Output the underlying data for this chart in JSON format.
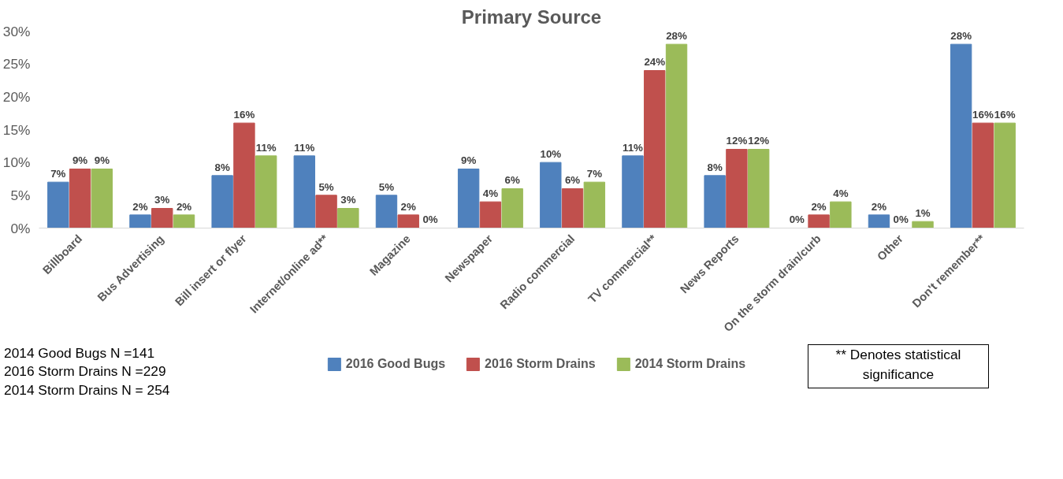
{
  "chart_data": {
    "type": "bar",
    "title": "Primary Source",
    "categories": [
      "Billboard",
      "Bus Advertising",
      "Bill insert or flyer",
      "Internet/online ad**",
      "Magazine",
      "Newspaper",
      "Radio commercial",
      "TV commercial**",
      "News Reports",
      "On the storm drain/curb",
      "Other",
      "Don't remember**"
    ],
    "series": [
      {
        "name": "2016 Good Bugs",
        "color": "#4f81bd",
        "values": [
          7,
          2,
          8,
          11,
          5,
          9,
          10,
          11,
          8,
          0,
          2,
          28
        ],
        "value_labels": [
          "7%",
          "2%",
          "8%",
          "11%",
          "5%",
          "9%",
          "10%",
          "11%",
          "8%",
          "0%",
          "2%",
          "28%"
        ]
      },
      {
        "name": "2016 Storm Drains",
        "color": "#c0504d",
        "values": [
          9,
          3,
          16,
          5,
          2,
          4,
          6,
          24,
          12,
          2,
          0,
          16
        ],
        "value_labels": [
          "9%",
          "3%",
          "16%",
          "5%",
          "2%",
          "4%",
          "6%",
          "24%",
          "12%",
          "2%",
          "0%",
          "16%"
        ]
      },
      {
        "name": "2014 Storm Drains",
        "color": "#9bbb59",
        "values": [
          9,
          2,
          11,
          3,
          0,
          6,
          7,
          28,
          12,
          4,
          1,
          16
        ],
        "value_labels": [
          "9%",
          "2%",
          "11%",
          "3%",
          "0%",
          "6%",
          "7%",
          "28%",
          "12%",
          "4%",
          "1%",
          "16%"
        ]
      }
    ],
    "ylim": [
      0,
      30
    ],
    "yticks": [
      {
        "value": 0,
        "label": "0%"
      },
      {
        "value": 5,
        "label": "5%"
      },
      {
        "value": 10,
        "label": "10%"
      },
      {
        "value": 15,
        "label": "15%"
      },
      {
        "value": 20,
        "label": "20%"
      },
      {
        "value": 25,
        "label": "25%"
      },
      {
        "value": 30,
        "label": "30%"
      }
    ],
    "grid": false,
    "legend": "bottom",
    "annotations": [
      "2014 Good Bugs N =141",
      "2016 Storm Drains N =229",
      "2014 Storm Drains N = 254",
      "** Denotes statistical significance"
    ]
  }
}
